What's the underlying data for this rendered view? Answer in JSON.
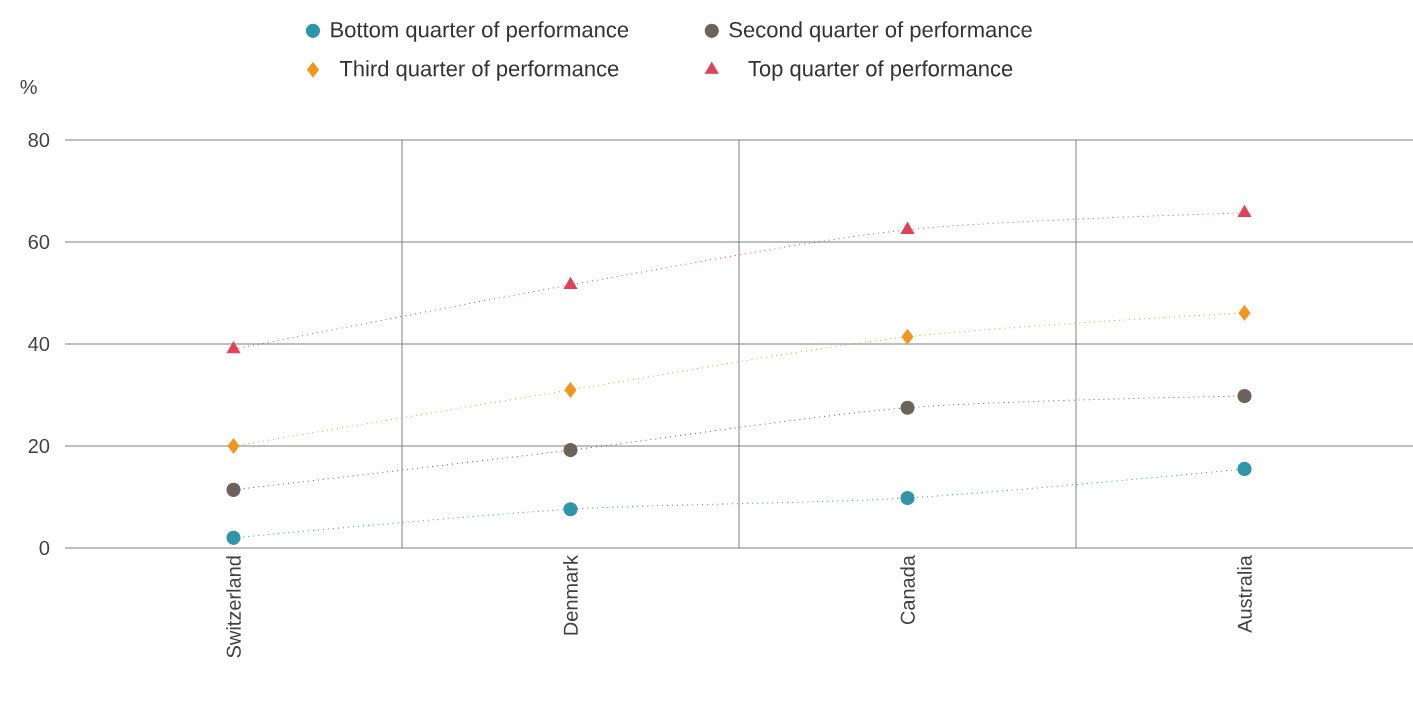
{
  "chart_data": {
    "type": "line",
    "ylabel": "%",
    "categories": [
      "Switzerland",
      "Denmark",
      "Canada",
      "Australia"
    ],
    "series": [
      {
        "name": "Bottom quarter of performance",
        "color": "#2e96a8",
        "marker": "circle",
        "values": [
          2.0,
          7.6,
          9.8,
          15.5
        ]
      },
      {
        "name": "Second quarter of performance",
        "color": "#6d6259",
        "marker": "circle",
        "values": [
          11.4,
          19.2,
          27.5,
          29.8
        ]
      },
      {
        "name": "Third quarter of performance",
        "color": "#f2961e",
        "marker": "diamond",
        "values": [
          20,
          31,
          41.4,
          46.1
        ]
      },
      {
        "name": "Top quarter of performance",
        "color": "#e04358",
        "marker": "triangle",
        "values": [
          39.0,
          51.6,
          62.4,
          65.7
        ]
      }
    ],
    "ylim": [
      0,
      80
    ],
    "yticks": [
      0,
      20,
      40,
      60,
      80
    ],
    "grid": true,
    "legend": "top",
    "line_style": "dotted"
  }
}
